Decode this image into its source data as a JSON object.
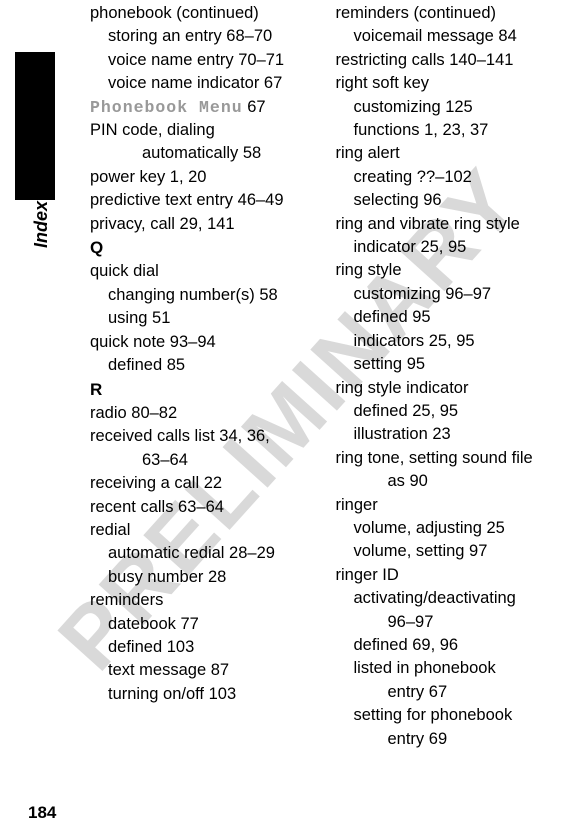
{
  "watermark_text": "PRELIMINARY",
  "side_label": "Index",
  "page_number": "184",
  "col1": [
    {
      "cls": "entry-main",
      "text": "phonebook (continued)"
    },
    {
      "cls": "entry-sub",
      "text": "storing an entry  68–70"
    },
    {
      "cls": "entry-sub",
      "text": "voice name entry  70–71"
    },
    {
      "cls": "entry-sub",
      "text": "voice name indicator  67"
    },
    {
      "cls": "entry-main",
      "html": "<span class='special-font'>Phonebook Menu</span>  67"
    },
    {
      "cls": "entry-main",
      "text": "PIN code, dialing"
    },
    {
      "cls": "entry-sub2",
      "text": "automatically  58"
    },
    {
      "cls": "entry-main",
      "text": "power key  1, 20"
    },
    {
      "cls": "entry-main",
      "text": "predictive text entry  46–49"
    },
    {
      "cls": "entry-main",
      "text": "privacy, call  29, 141"
    },
    {
      "cls": "section-heading",
      "text": "Q"
    },
    {
      "cls": "entry-main",
      "text": "quick dial"
    },
    {
      "cls": "entry-sub",
      "text": "changing number(s)  58"
    },
    {
      "cls": "entry-sub",
      "text": "using  51"
    },
    {
      "cls": "entry-main",
      "text": "quick note  93–94"
    },
    {
      "cls": "entry-sub",
      "text": "defined  85"
    },
    {
      "cls": "section-heading",
      "text": "R"
    },
    {
      "cls": "entry-main",
      "text": "radio  80–82"
    },
    {
      "cls": "entry-main",
      "text": "received calls list  34, 36,"
    },
    {
      "cls": "entry-sub2",
      "text": "63–64"
    },
    {
      "cls": "entry-main",
      "text": "receiving a call  22"
    },
    {
      "cls": "entry-main",
      "text": "recent calls  63–64"
    },
    {
      "cls": "entry-main",
      "text": "redial"
    },
    {
      "cls": "entry-sub",
      "text": "automatic redial  28–29"
    },
    {
      "cls": "entry-sub",
      "text": "busy number  28"
    },
    {
      "cls": "entry-main",
      "text": "reminders"
    },
    {
      "cls": "entry-sub",
      "text": "datebook  77"
    },
    {
      "cls": "entry-sub",
      "text": "defined  103"
    },
    {
      "cls": "entry-sub",
      "text": "text message  87"
    },
    {
      "cls": "entry-sub",
      "text": "turning on/off  103"
    }
  ],
  "col2": [
    {
      "cls": "entry-main",
      "text": "reminders (continued)"
    },
    {
      "cls": "entry-sub",
      "text": "voicemail message  84"
    },
    {
      "cls": "entry-main",
      "text": "restricting calls  140–141"
    },
    {
      "cls": "entry-main",
      "text": "right soft key"
    },
    {
      "cls": "entry-sub",
      "text": "customizing  125"
    },
    {
      "cls": "entry-sub",
      "text": "functions  1, 23, 37"
    },
    {
      "cls": "entry-main",
      "text": "ring alert"
    },
    {
      "cls": "entry-sub",
      "text": "creating  ??–102"
    },
    {
      "cls": "entry-sub",
      "text": "selecting  96"
    },
    {
      "cls": "entry-main",
      "text": "ring and vibrate ring style"
    },
    {
      "cls": "entry-sub",
      "text": "indicator  25, 95"
    },
    {
      "cls": "entry-main",
      "text": "ring style"
    },
    {
      "cls": "entry-sub",
      "text": "customizing  96–97"
    },
    {
      "cls": "entry-sub",
      "text": "defined  95"
    },
    {
      "cls": "entry-sub",
      "text": "indicators  25, 95"
    },
    {
      "cls": "entry-sub",
      "text": "setting  95"
    },
    {
      "cls": "entry-main",
      "text": "ring style indicator"
    },
    {
      "cls": "entry-sub",
      "text": "defined  25, 95"
    },
    {
      "cls": "entry-sub",
      "text": "illustration  23"
    },
    {
      "cls": "entry-main",
      "text": "ring tone, setting sound file"
    },
    {
      "cls": "entry-sub2",
      "text": "as  90"
    },
    {
      "cls": "entry-main",
      "text": "ringer"
    },
    {
      "cls": "entry-sub",
      "text": "volume, adjusting  25"
    },
    {
      "cls": "entry-sub",
      "text": "volume, setting  97"
    },
    {
      "cls": "entry-main",
      "text": "ringer ID"
    },
    {
      "cls": "entry-sub",
      "text": "activating/deactivating"
    },
    {
      "cls": "entry-sub2",
      "text": "96–97"
    },
    {
      "cls": "entry-sub",
      "text": "defined  69, 96"
    },
    {
      "cls": "entry-sub",
      "text": "listed in phonebook"
    },
    {
      "cls": "entry-sub2",
      "text": "entry  67"
    },
    {
      "cls": "entry-sub",
      "text": "setting for phonebook"
    },
    {
      "cls": "entry-sub2",
      "text": "entry  69"
    }
  ]
}
